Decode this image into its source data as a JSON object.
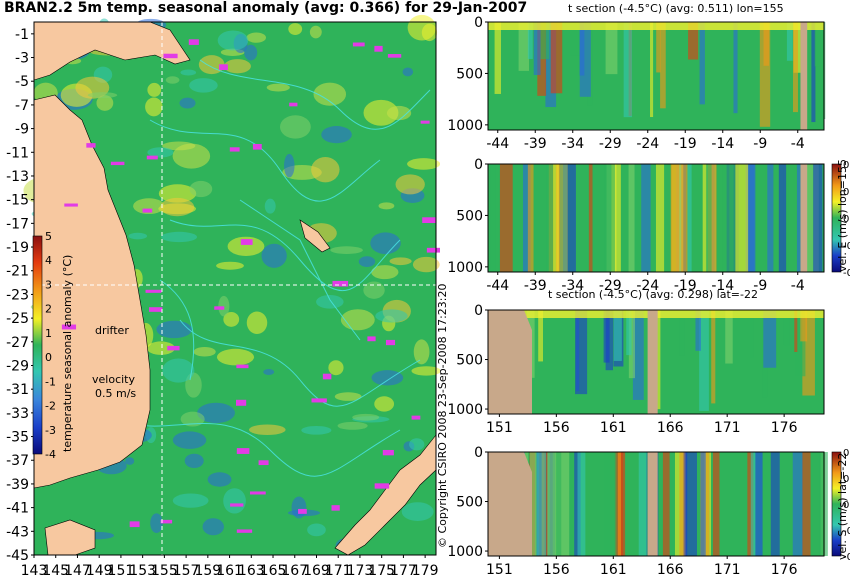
{
  "main_title": "BRAN2.2 5m temp. seasonal anomaly (avg: 0.366) for 29-Jan-2007",
  "copyright": "© Copyright CSIRO 2008  23-Sep-2008 17:23:20",
  "colors": {
    "land": "#f7c8a0",
    "section_land": "#c8a88a",
    "ocean_green": "#2fb35a",
    "warm_yellow": "#f0f030",
    "cool_blue": "#2a6ad8",
    "contour_cyan": "#49e3e3",
    "drifter_magenta": "#e23be6"
  },
  "chart_data": [
    {
      "type": "heatmap",
      "name": "map",
      "title": "BRAN2.2 5m temp. seasonal anomaly (avg: 0.366) for 29-Jan-2007",
      "x_ticks": [
        "143",
        "145",
        "147",
        "149",
        "151",
        "153",
        "155",
        "157",
        "159",
        "161",
        "163",
        "165",
        "167",
        "169",
        "171",
        "173",
        "175",
        "177",
        "179"
      ],
      "y_ticks": [
        "-1",
        "-3",
        "-5",
        "-7",
        "-9",
        "-11",
        "-13",
        "-15",
        "-17",
        "-19",
        "-21",
        "-23",
        "-25",
        "-27",
        "-29",
        "-31",
        "-33",
        "-35",
        "-37",
        "-39",
        "-41",
        "-43",
        "-45"
      ],
      "xlim": [
        143,
        180
      ],
      "ylim": [
        -45,
        0
      ],
      "colorbar": {
        "label": "temperature seasonal anomaly (°C)",
        "ticks": [
          "5",
          "4",
          "3",
          "2",
          "1",
          "0",
          "-1",
          "-2",
          "-3",
          "-4"
        ],
        "range": [
          -4,
          5
        ]
      },
      "annotations": {
        "drifter": "drifter",
        "velocity": "velocity",
        "velocity_value": "0.5 m/s"
      },
      "crosshair": {
        "lon": 155,
        "lat": -22
      }
    },
    {
      "type": "heatmap",
      "name": "t-section-lon",
      "title": "t section (-4.5°C) (avg: 0.511) lon=155",
      "x_ticks": [
        "-44",
        "-39",
        "-34",
        "-29",
        "-24",
        "-19",
        "-14",
        "-9",
        "-4"
      ],
      "y_ticks": [
        "0",
        "500",
        "1000"
      ],
      "ylim": [
        1050,
        0
      ]
    },
    {
      "type": "heatmap",
      "name": "vel-e-section",
      "title": "",
      "x_ticks": [
        "-44",
        "-39",
        "-34",
        "-29",
        "-24",
        "-19",
        "-14",
        "-9",
        "-4"
      ],
      "y_ticks": [
        "0",
        "500",
        "1000"
      ],
      "ylim": [
        1050,
        0
      ],
      "colorbar": {
        "label": "vel. E (m/s) lon=155",
        "ticks": [
          "0.4",
          "0.2",
          "0",
          "-0.2",
          "-0.4"
        ],
        "range": [
          -0.4,
          0.4
        ]
      }
    },
    {
      "type": "heatmap",
      "name": "t-section-lat",
      "title": "t section (-4.5°C) (avg: 0.298) lat=-22",
      "x_ticks": [
        "151",
        "156",
        "161",
        "166",
        "171",
        "176"
      ],
      "y_ticks": [
        "0",
        "500",
        "1000"
      ],
      "ylim": [
        1050,
        0
      ]
    },
    {
      "type": "heatmap",
      "name": "vel-s-section",
      "title": "",
      "x_ticks": [
        "151",
        "156",
        "161",
        "166",
        "171",
        "176"
      ],
      "y_ticks": [
        "0",
        "500",
        "1000"
      ],
      "ylim": [
        1050,
        0
      ],
      "colorbar": {
        "label": "vel. S (m/s) lat=-22",
        "ticks": [
          "0.4",
          "0.2",
          "0",
          "-0.2",
          "-0.4"
        ],
        "range": [
          -0.4,
          0.4
        ]
      }
    }
  ]
}
